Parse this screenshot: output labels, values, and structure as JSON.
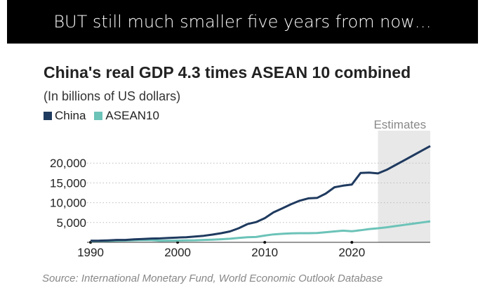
{
  "slide": {
    "banner": "BUT still much smaller five years from now…"
  },
  "chart_data": {
    "type": "line",
    "title": "China's real GDP 4.3 times ASEAN 10 combined",
    "subtitle": "(In billions of US dollars)",
    "source": "Source: International Monetary Fund, World Economic Outlook Database",
    "annotation": "Estimates",
    "estimates_range": [
      2023,
      2029
    ],
    "xlim": [
      1990,
      2029
    ],
    "ylim": [
      0,
      25000
    ],
    "x_ticks": [
      1990,
      2000,
      2010,
      2020
    ],
    "y_ticks": [
      5000,
      10000,
      15000,
      20000
    ],
    "y_tick_labels": [
      "5,000",
      "10,000",
      "15,000",
      "20,000"
    ],
    "grid": "horizontal dotted",
    "legend": "top-left",
    "x": [
      1990,
      1991,
      1992,
      1993,
      1994,
      1995,
      1996,
      1997,
      1998,
      1999,
      2000,
      2001,
      2002,
      2003,
      2004,
      2005,
      2006,
      2007,
      2008,
      2009,
      2010,
      2011,
      2012,
      2013,
      2014,
      2015,
      2016,
      2017,
      2018,
      2019,
      2020,
      2021,
      2022,
      2023,
      2024,
      2025,
      2026,
      2027,
      2028,
      2029
    ],
    "series": [
      {
        "name": "China",
        "color": "#1f3a5f",
        "values": [
          400,
          420,
          500,
          600,
          600,
          750,
          850,
          950,
          1000,
          1100,
          1200,
          1300,
          1450,
          1650,
          1950,
          2300,
          2750,
          3550,
          4600,
          5100,
          6100,
          7550,
          8550,
          9600,
          10500,
          11100,
          11200,
          12300,
          13900,
          14300,
          14600,
          17500,
          17600,
          17400,
          18300,
          19500,
          20700,
          21900,
          23100,
          24300
        ]
      },
      {
        "name": "ASEAN10",
        "color": "#6cc3b8",
        "values": [
          300,
          330,
          360,
          400,
          450,
          520,
          580,
          550,
          400,
          420,
          450,
          470,
          520,
          600,
          680,
          780,
          900,
          1100,
          1300,
          1350,
          1700,
          2000,
          2150,
          2250,
          2300,
          2300,
          2350,
          2550,
          2750,
          2950,
          2800,
          3050,
          3350,
          3550,
          3800,
          4100,
          4400,
          4700,
          5000,
          5300
        ]
      }
    ]
  }
}
